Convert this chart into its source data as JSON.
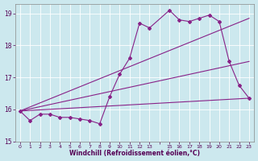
{
  "xlabel": "Windchill (Refroidissement éolien,°C)",
  "bg_color": "#cce8ee",
  "grid_color": "#b0d8e0",
  "line_color": "#882288",
  "xlim": [
    -0.5,
    23.5
  ],
  "ylim": [
    15.0,
    19.3
  ],
  "yticks": [
    15,
    16,
    17,
    18,
    19
  ],
  "xtick_labels": [
    "0",
    "1",
    "2",
    "3",
    "4",
    "5",
    "6",
    "7",
    "8",
    "9",
    "10",
    "11",
    "12",
    "13",
    "",
    "15",
    "16",
    "17",
    "18",
    "19",
    "20",
    "21",
    "22",
    "23"
  ],
  "series1_x": [
    0,
    1,
    2,
    3,
    4,
    5,
    6,
    7,
    8,
    9,
    10,
    11,
    12,
    13,
    15,
    16,
    17,
    18,
    19,
    20,
    21,
    22,
    23
  ],
  "series1_y": [
    15.95,
    15.65,
    15.85,
    15.85,
    15.75,
    15.75,
    15.7,
    15.65,
    15.55,
    16.4,
    17.1,
    17.6,
    18.7,
    18.55,
    19.1,
    18.8,
    18.75,
    18.85,
    18.95,
    18.75,
    17.5,
    16.75,
    16.35
  ],
  "series2_x": [
    0,
    23
  ],
  "series2_y": [
    15.95,
    16.35
  ],
  "series3_x": [
    0,
    23
  ],
  "series3_y": [
    15.95,
    17.5
  ],
  "series4_x": [
    0,
    23
  ],
  "series4_y": [
    15.95,
    18.85
  ]
}
